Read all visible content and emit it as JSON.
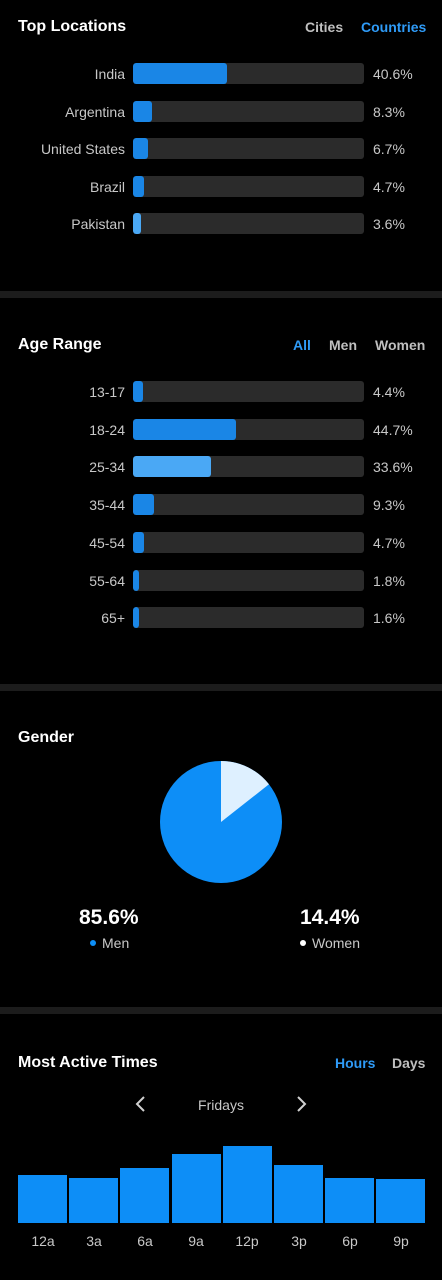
{
  "top_locations": {
    "title": "Top Locations",
    "tabs": [
      {
        "label": "Cities",
        "active": false
      },
      {
        "label": "Countries",
        "active": true
      }
    ],
    "rows": [
      {
        "label": "India",
        "value": "40.6%",
        "fraction": 0.406
      },
      {
        "label": "Argentina",
        "value": "8.3%",
        "fraction": 0.083
      },
      {
        "label": "United States",
        "value": "6.7%",
        "fraction": 0.067
      },
      {
        "label": "Brazil",
        "value": "4.7%",
        "fraction": 0.047
      },
      {
        "label": "Pakistan",
        "value": "3.6%",
        "fraction": 0.036
      }
    ],
    "highlight_row": 4
  },
  "age_range": {
    "title": "Age Range",
    "tabs": [
      {
        "label": "All",
        "active": true
      },
      {
        "label": "Men",
        "active": false
      },
      {
        "label": "Women",
        "active": false
      }
    ],
    "rows": [
      {
        "label": "13-17",
        "value": "4.4%",
        "fraction": 0.044
      },
      {
        "label": "18-24",
        "value": "44.7%",
        "fraction": 0.447
      },
      {
        "label": "25-34",
        "value": "33.6%",
        "fraction": 0.336
      },
      {
        "label": "35-44",
        "value": "9.3%",
        "fraction": 0.093
      },
      {
        "label": "45-54",
        "value": "4.7%",
        "fraction": 0.047
      },
      {
        "label": "55-64",
        "value": "1.8%",
        "fraction": 0.018
      },
      {
        "label": "65+",
        "value": "1.6%",
        "fraction": 0.016
      }
    ],
    "highlight_row": 2
  },
  "gender": {
    "title": "Gender",
    "men": {
      "value": "85.6%",
      "label": "Men",
      "fraction": 0.856
    },
    "women": {
      "value": "14.4%",
      "label": "Women",
      "fraction": 0.144
    }
  },
  "most_active": {
    "title": "Most Active Times",
    "tabs": [
      {
        "label": "Hours",
        "active": true
      },
      {
        "label": "Days",
        "active": false
      }
    ],
    "day": "Fridays",
    "hours": [
      "12a",
      "3a",
      "6a",
      "9a",
      "12p",
      "3p",
      "6p",
      "9p"
    ],
    "activity": [
      0.62,
      0.58,
      0.72,
      0.89,
      1.0,
      0.75,
      0.59,
      0.57
    ]
  },
  "colors": {
    "background": "#000000",
    "bar_fill": "#1a86e6",
    "bar_highlight": "#4aa8f5",
    "bar_track": "#2b2b2b",
    "accent": "#2f9bf7",
    "pie_men": "#0d8ef7",
    "pie_women": "#def0ff",
    "divider": "#1c1c1c"
  }
}
